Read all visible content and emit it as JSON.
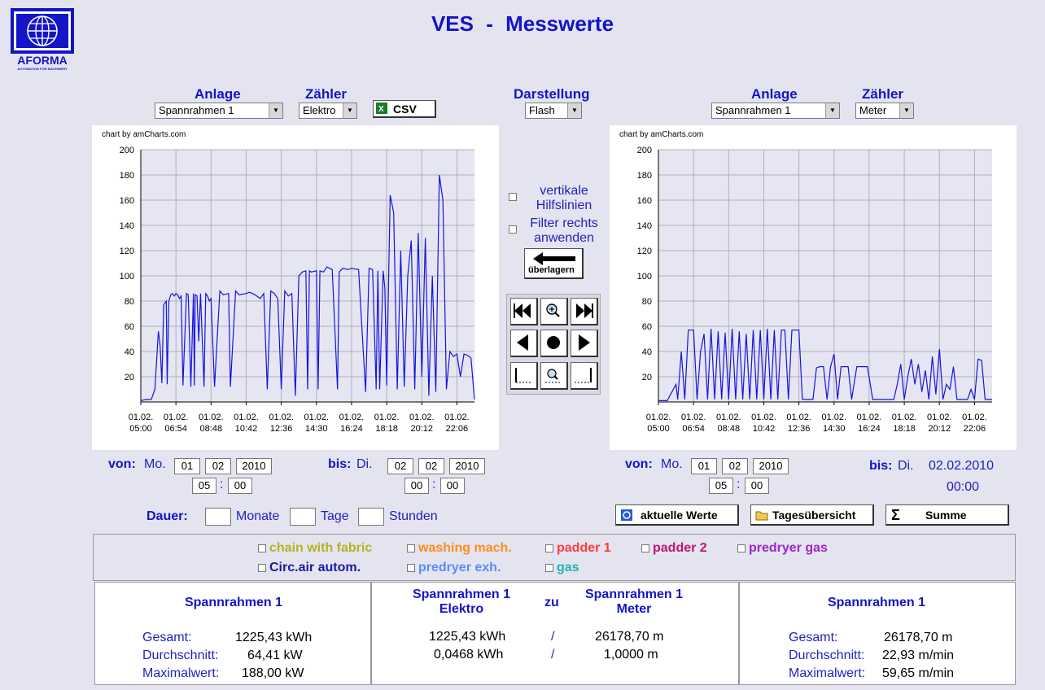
{
  "logo": {
    "text": "AFORMA",
    "subtext": "AUTOMATION FOR MACHINERY"
  },
  "title": "VES  -  Messwerte",
  "left": {
    "anlage_label": "Anlage",
    "anlage_value": "Spannrahmen 1",
    "zaehler_label": "Zähler",
    "zaehler_value": "Elektro",
    "csv_label": "CSV",
    "credit": "chart by amCharts.com"
  },
  "center": {
    "darstellung_label": "Darstellung",
    "darstellung_value": "Flash",
    "vertikale_label": "vertikale Hilfslinien",
    "filter_label": "Filter rechts anwenden",
    "ueberlagern_label": "überlagern"
  },
  "right": {
    "anlage_label": "Anlage",
    "anlage_value": "Spannrahmen 1",
    "zaehler_label": "Zähler",
    "zaehler_value": "Meter",
    "credit": "chart by amCharts.com"
  },
  "left_range": {
    "von_label": "von:",
    "von_day": "Mo.",
    "von_d": "01",
    "von_m": "02",
    "von_y": "2010",
    "von_h": "05",
    "von_min": "00",
    "bis_label": "bis:",
    "bis_day": "Di.",
    "bis_d": "02",
    "bis_m": "02",
    "bis_y": "2010",
    "bis_h": "00",
    "bis_min": "00",
    "sep": ":"
  },
  "right_range": {
    "von_label": "von:",
    "von_day": "Mo.",
    "von_d": "01",
    "von_m": "02",
    "von_y": "2010",
    "von_h": "05",
    "von_min": "00",
    "bis_label": "bis:",
    "bis_day": "Di.",
    "bis_date": "02.02.2010",
    "bis_time": "00:00",
    "sep": ":"
  },
  "dauer": {
    "label": "Dauer:",
    "monate": "Monate",
    "tage": "Tage",
    "stunden": "Stunden"
  },
  "buttons": {
    "aktuelle": "aktuelle Werte",
    "tages": "Tagesübersicht",
    "summe": "Summe"
  },
  "legend": [
    {
      "label": "chain with fabric",
      "color": "#b7b21e"
    },
    {
      "label": "washing mach.",
      "color": "#ff8c1a"
    },
    {
      "label": "padder 1",
      "color": "#ff3b3b"
    },
    {
      "label": "padder 2",
      "color": "#c0166e"
    },
    {
      "label": "predryer gas",
      "color": "#9a28c8"
    },
    {
      "label": "Circ.air autom.",
      "color": "#1a1aa0"
    },
    {
      "label": "predryer exh.",
      "color": "#5a8cff"
    },
    {
      "label": "gas",
      "color": "#1eb4b4"
    }
  ],
  "stats_left": {
    "title": "Spannrahmen 1",
    "gesamt_label": "Gesamt:",
    "gesamt": "1225,43 kWh",
    "avg_label": "Durchschnitt:",
    "avg": "64,41 kW",
    "max_label": "Maximalwert:",
    "max": "188,00 kW"
  },
  "stats_mid": {
    "left_title": "Spannrahmen 1",
    "left_sub": "Elektro",
    "zu": "zu",
    "right_title": "Spannrahmen 1",
    "right_sub": "Meter",
    "row1_left": "1225,43 kWh",
    "row1_sep": "/",
    "row1_right": "26178,70 m",
    "row2_left": "0,0468 kWh",
    "row2_sep": "/",
    "row2_right": "1,0000 m"
  },
  "stats_right": {
    "title": "Spannrahmen 1",
    "gesamt_label": "Gesamt:",
    "gesamt": "26178,70 m",
    "avg_label": "Durchschnitt:",
    "avg": "22,93 m/min",
    "max_label": "Maximalwert:",
    "max": "59,65 m/min"
  },
  "chart_data": [
    {
      "type": "line",
      "title": "",
      "ylim": [
        0,
        200
      ],
      "yticks": [
        20,
        40,
        60,
        80,
        100,
        120,
        140,
        160,
        180,
        200
      ],
      "xticks": [
        "01.02. 05:00",
        "01.02. 06:54",
        "01.02. 08:48",
        "01.02. 10:42",
        "01.02. 12:36",
        "01.02. 14:30",
        "01.02. 16:24",
        "01.02. 18:18",
        "01.02. 20:12",
        "01.02. 22:06"
      ],
      "xlim": [
        0,
        19
      ],
      "color": "#1414e0",
      "series": [
        {
          "x": [
            0,
            0.3,
            0.6,
            0.8,
            1.0,
            1.1,
            1.2,
            1.3,
            1.45,
            1.5,
            1.6,
            1.7,
            1.8,
            1.9,
            2.0,
            2.1,
            2.2,
            2.3,
            2.4,
            2.6,
            2.7,
            2.85,
            3.0,
            3.05,
            3.1,
            3.2,
            3.3,
            3.4,
            3.6,
            3.7,
            3.8,
            3.9,
            4.0,
            4.2,
            4.5,
            4.7,
            5.0,
            5.1,
            5.4,
            5.6,
            6.0,
            6.2,
            6.5,
            6.8,
            7.0,
            7.2,
            7.4,
            7.6,
            7.8,
            8.0,
            8.2,
            8.4,
            8.6,
            8.8,
            9.0,
            9.2,
            9.4,
            9.5,
            9.6,
            9.7,
            10.0,
            10.1,
            10.2,
            10.4,
            10.6,
            10.9,
            11.2,
            11.3,
            11.5,
            11.8,
            12.0,
            12.4,
            12.8,
            13.0,
            13.2,
            13.4,
            13.5,
            13.6,
            13.8,
            13.9,
            14.0,
            14.2,
            14.4,
            14.6,
            14.8,
            15.0,
            15.2,
            15.4,
            15.6,
            15.8,
            16.0,
            16.2,
            16.4,
            16.6,
            16.8,
            17.0,
            17.2,
            17.4,
            17.6,
            17.8,
            18.0,
            18.2,
            18.4,
            18.6,
            18.8,
            19.0
          ],
          "values": [
            1,
            2,
            2,
            10,
            56,
            45,
            15,
            77,
            80,
            14,
            80,
            85,
            86,
            84,
            86,
            85,
            82,
            84,
            13,
            86,
            85,
            12,
            86,
            13,
            85,
            84,
            48,
            86,
            12,
            86,
            84,
            80,
            82,
            12,
            88,
            85,
            86,
            12,
            88,
            85,
            86,
            87,
            85,
            82,
            86,
            10,
            88,
            86,
            82,
            10,
            88,
            84,
            86,
            5,
            100,
            103,
            104,
            10,
            104,
            103,
            104,
            10,
            104,
            103,
            107,
            105,
            10,
            103,
            106,
            105,
            106,
            105,
            8,
            106,
            105,
            10,
            104,
            10,
            104,
            90,
            13,
            164,
            150,
            10,
            120,
            12,
            100,
            128,
            10,
            134,
            20,
            130,
            5,
            100,
            8,
            180,
            160,
            10,
            40,
            36,
            38,
            20,
            38,
            37,
            35,
            2
          ]
        }
      ]
    },
    {
      "type": "line",
      "title": "",
      "ylim": [
        0,
        200
      ],
      "yticks": [
        20,
        40,
        60,
        80,
        100,
        120,
        140,
        160,
        180,
        200
      ],
      "xticks": [
        "01.02. 05:00",
        "01.02. 06:54",
        "01.02. 08:48",
        "01.02. 10:42",
        "01.02. 12:36",
        "01.02. 14:30",
        "01.02. 16:24",
        "01.02. 18:18",
        "01.02. 20:12",
        "01.02. 22:06"
      ],
      "xlim": [
        0,
        19
      ],
      "color": "#1414e0",
      "series": [
        {
          "x": [
            0,
            0.5,
            1.0,
            1.1,
            1.3,
            1.5,
            1.7,
            1.9,
            2.0,
            2.2,
            2.4,
            2.6,
            2.8,
            3.0,
            3.2,
            3.4,
            3.6,
            3.8,
            4.0,
            4.2,
            4.4,
            4.6,
            4.8,
            5.0,
            5.2,
            5.4,
            5.6,
            5.8,
            6.0,
            6.2,
            6.4,
            6.6,
            6.8,
            7.0,
            7.2,
            7.4,
            7.6,
            7.8,
            8.0,
            8.2,
            8.5,
            8.8,
            9.0,
            9.2,
            9.4,
            9.6,
            9.8,
            10.0,
            10.2,
            10.4,
            10.6,
            10.8,
            11.0,
            11.3,
            11.6,
            11.9,
            12.2,
            12.5,
            12.8,
            13.0,
            13.2,
            13.4,
            13.6,
            13.8,
            14.0,
            14.2,
            14.4,
            14.6,
            14.8,
            15.0,
            15.2,
            15.4,
            15.6,
            15.8,
            16.0,
            16.2,
            16.4,
            16.6,
            16.8,
            17.0,
            17.2,
            17.4,
            17.6,
            17.8,
            18.0,
            18.2,
            18.4,
            18.6,
            19.0
          ],
          "values": [
            1,
            1,
            14,
            2,
            40,
            2,
            57,
            57,
            57,
            2,
            40,
            54,
            2,
            58,
            2,
            56,
            2,
            55,
            2,
            58,
            2,
            56,
            2,
            54,
            2,
            57,
            2,
            57,
            2,
            58,
            2,
            57,
            2,
            57,
            57,
            2,
            57,
            57,
            57,
            2,
            2,
            2,
            27,
            28,
            28,
            2,
            28,
            38,
            2,
            28,
            28,
            28,
            2,
            28,
            28,
            28,
            2,
            2,
            2,
            2,
            2,
            2,
            14,
            30,
            2,
            20,
            34,
            14,
            30,
            8,
            25,
            2,
            36,
            6,
            42,
            2,
            14,
            10,
            28,
            2,
            2,
            2,
            2,
            10,
            2,
            34,
            33,
            2,
            2
          ]
        }
      ]
    }
  ]
}
